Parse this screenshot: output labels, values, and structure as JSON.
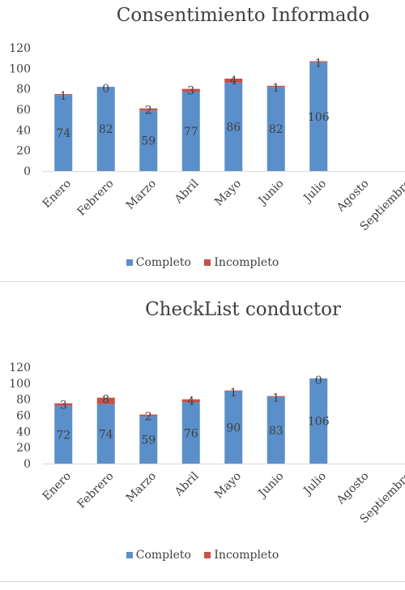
{
  "chart_data": [
    {
      "type": "bar",
      "stacked": true,
      "title": "Consentimiento Informado",
      "categories": [
        "Enero",
        "Febrero",
        "Marzo",
        "Abril",
        "Mayo",
        "Junio",
        "Julio",
        "Agosto",
        "Septiembre"
      ],
      "series": [
        {
          "name": "Completo",
          "color": "#5b8fc9",
          "values": [
            74,
            82,
            59,
            77,
            86,
            82,
            106,
            null,
            null
          ]
        },
        {
          "name": "Incompleto",
          "color": "#c9504c",
          "values": [
            1,
            0,
            2,
            3,
            4,
            1,
            1,
            null,
            null
          ]
        }
      ],
      "ylim": [
        0,
        120
      ],
      "yticks": [
        0,
        20,
        40,
        60,
        80,
        100,
        120
      ],
      "grid": false,
      "legend": "bottom"
    },
    {
      "type": "bar",
      "stacked": true,
      "title": "CheckList conductor",
      "categories": [
        "Enero",
        "Febrero",
        "Marzo",
        "Abril",
        "Mayo",
        "Junio",
        "Julio",
        "Agosto",
        "Septiembre"
      ],
      "series": [
        {
          "name": "Completo",
          "color": "#5b8fc9",
          "values": [
            72,
            74,
            59,
            76,
            90,
            83,
            106,
            null,
            null
          ]
        },
        {
          "name": "Incompleto",
          "color": "#c9504c",
          "values": [
            3,
            8,
            2,
            4,
            1,
            1,
            0,
            null,
            null
          ]
        }
      ],
      "ylim": [
        0,
        120
      ],
      "yticks": [
        0,
        20,
        40,
        60,
        80,
        100,
        120
      ],
      "grid": false,
      "legend": "bottom"
    }
  ]
}
